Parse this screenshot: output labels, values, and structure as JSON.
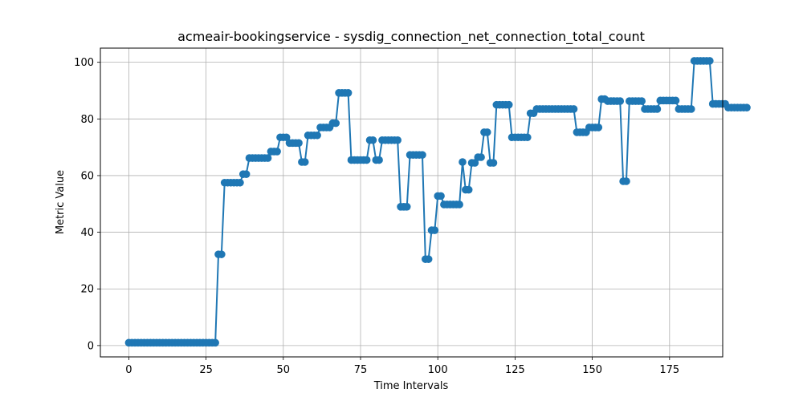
{
  "chart_data": {
    "type": "line",
    "title": "acmeair-bookingservice - sysdig_connection_net_connection_total_count",
    "xlabel": "Time Intervals",
    "ylabel": "Metric Value",
    "xlim": [
      -9.2,
      192.2
    ],
    "ylim": [
      -4,
      105
    ],
    "xticks": [
      0,
      25,
      50,
      75,
      100,
      125,
      150,
      175
    ],
    "yticks": [
      0,
      20,
      40,
      60,
      80,
      100
    ],
    "grid": true,
    "line_color": "#1f77b4",
    "marker": "circle",
    "series": [
      {
        "values": [
          1,
          1,
          1,
          1,
          1,
          1,
          1,
          1,
          1,
          1,
          1,
          1,
          1,
          1,
          1,
          1,
          1,
          1,
          1,
          1,
          1,
          1,
          1,
          1,
          1,
          1,
          1,
          1,
          1,
          32.2,
          32.2,
          57.5,
          57.5,
          57.5,
          57.5,
          57.5,
          57.5,
          60.5,
          60.5,
          66.2,
          66.2,
          66.2,
          66.2,
          66.2,
          66.2,
          66.2,
          68.5,
          68.5,
          68.5,
          73.5,
          73.5,
          73.5,
          71.5,
          71.5,
          71.5,
          71.5,
          64.8,
          64.8,
          74.2,
          74.2,
          74.2,
          74.2,
          77,
          77,
          77,
          77,
          78.5,
          78.5,
          89.2,
          89.2,
          89.2,
          89.2,
          65.5,
          65.5,
          65.5,
          65.5,
          65.5,
          65.5,
          72.5,
          72.5,
          65.5,
          65.5,
          72.5,
          72.5,
          72.5,
          72.5,
          72.5,
          72.5,
          49,
          49,
          49,
          67.3,
          67.3,
          67.3,
          67.3,
          67.3,
          30.5,
          30.5,
          40.7,
          40.7,
          52.8,
          52.8,
          49.8,
          49.8,
          49.8,
          49.8,
          49.8,
          49.8,
          64.8,
          55,
          55,
          64.5,
          64.5,
          66.5,
          66.5,
          75.3,
          75.3,
          64.5,
          64.5,
          85,
          85,
          85,
          85,
          85,
          73.5,
          73.5,
          73.5,
          73.5,
          73.5,
          73.5,
          82,
          82,
          83.5,
          83.5,
          83.5,
          83.5,
          83.5,
          83.5,
          83.5,
          83.5,
          83.5,
          83.5,
          83.5,
          83.5,
          83.5,
          75.3,
          75.3,
          75.3,
          75.3,
          77,
          77,
          77,
          77,
          87,
          87,
          86.3,
          86.3,
          86.3,
          86.3,
          86.3,
          58,
          58,
          86.3,
          86.3,
          86.3,
          86.3,
          86.3,
          83.5,
          83.5,
          83.5,
          83.5,
          83.5,
          86.5,
          86.5,
          86.5,
          86.5,
          86.5,
          86.5,
          83.5,
          83.5,
          83.5,
          83.5,
          83.5,
          100.5,
          100.5,
          100.5,
          100.5,
          100.5,
          100.5,
          85.3,
          85.3,
          85.3,
          85.3,
          85.3,
          84,
          84,
          84,
          84,
          84,
          84,
          84
        ]
      }
    ]
  }
}
